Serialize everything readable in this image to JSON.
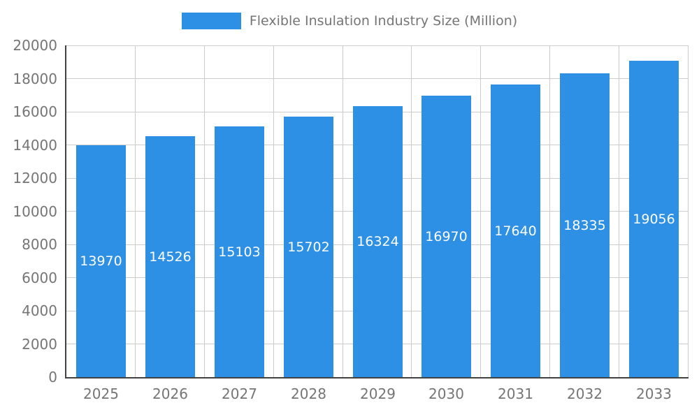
{
  "legend": {
    "label": "Flexible Insulation Industry Size (Million)"
  },
  "chart_data": {
    "type": "bar",
    "title": "Flexible Insulation Industry Size (Million)",
    "categories": [
      "2025",
      "2026",
      "2027",
      "2028",
      "2029",
      "2030",
      "2031",
      "2032",
      "2033"
    ],
    "values": [
      13970,
      14526,
      15103,
      15702,
      16324,
      16970,
      17640,
      18335,
      19056
    ],
    "xlabel": "",
    "ylabel": "",
    "ylim": [
      0,
      20000
    ],
    "ytick_step": 2000,
    "grid": true,
    "legend_position": "top",
    "bar_color": "#2E90E5",
    "value_label_color": "#FFFFFF",
    "grid_color": "#CCCCCC",
    "axis_color": "#424242",
    "tick_text_color": "#757575"
  }
}
